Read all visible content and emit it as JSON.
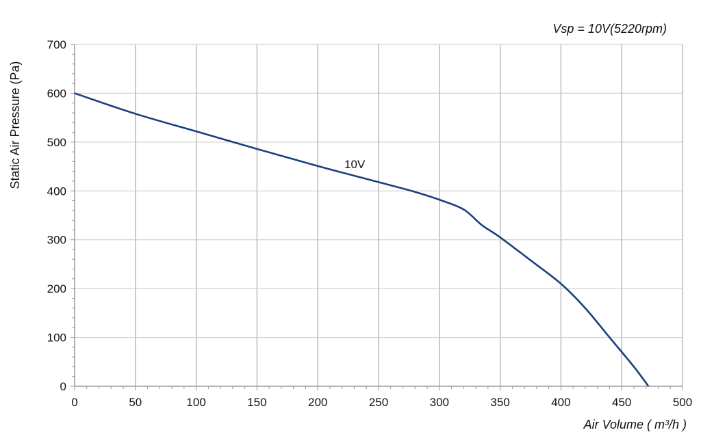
{
  "chart_data": {
    "type": "line",
    "title": "Vsp = 10V(5220rpm)",
    "xlabel": "Air Volume ( m³/h )",
    "ylabel": "Static Air Pressure  (Pa)",
    "xlim": [
      0,
      500
    ],
    "ylim": [
      0,
      700
    ],
    "x_ticks": [
      "0",
      "50",
      "100",
      "150",
      "200",
      "250",
      "300",
      "350",
      "400",
      "450",
      "500"
    ],
    "y_ticks": [
      "0",
      "100",
      "200",
      "300",
      "400",
      "500",
      "600",
      "700"
    ],
    "grid": true,
    "series": [
      {
        "name": "10V",
        "color": "#1a3f7f",
        "x": [
          0,
          50,
          100,
          150,
          200,
          250,
          280,
          300,
          320,
          335,
          350,
          375,
          400,
          420,
          440,
          460,
          472
        ],
        "y": [
          600,
          558,
          522,
          486,
          451,
          418,
          398,
          382,
          362,
          330,
          305,
          258,
          210,
          160,
          100,
          40,
          0
        ]
      }
    ]
  }
}
